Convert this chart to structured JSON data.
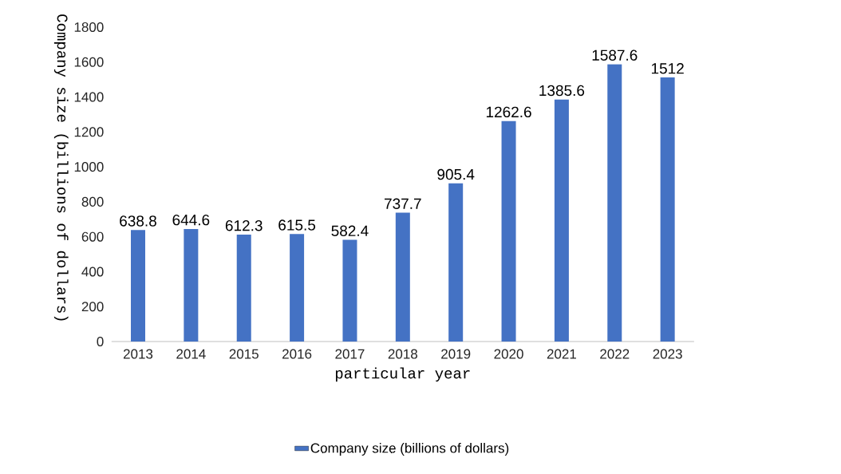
{
  "chart_data": {
    "type": "bar",
    "xlabel": "particular year",
    "ylabel": "Company size (billions of dollars)",
    "categories": [
      "2013",
      "2014",
      "2015",
      "2016",
      "2017",
      "2018",
      "2019",
      "2020",
      "2021",
      "2022",
      "2023"
    ],
    "series": [
      {
        "name": "Company size (billions of dollars)",
        "color": "#4472c4",
        "values": [
          638.8,
          644.6,
          612.3,
          615.5,
          582.4,
          737.7,
          905.4,
          1262.6,
          1385.6,
          1587.6,
          1512
        ]
      }
    ],
    "ylim": [
      0,
      1800
    ],
    "yticks": [
      0,
      200,
      400,
      600,
      800,
      1000,
      1200,
      1400,
      1600,
      1800
    ],
    "data_labels": true,
    "grid": false,
    "legend": "bottom"
  }
}
